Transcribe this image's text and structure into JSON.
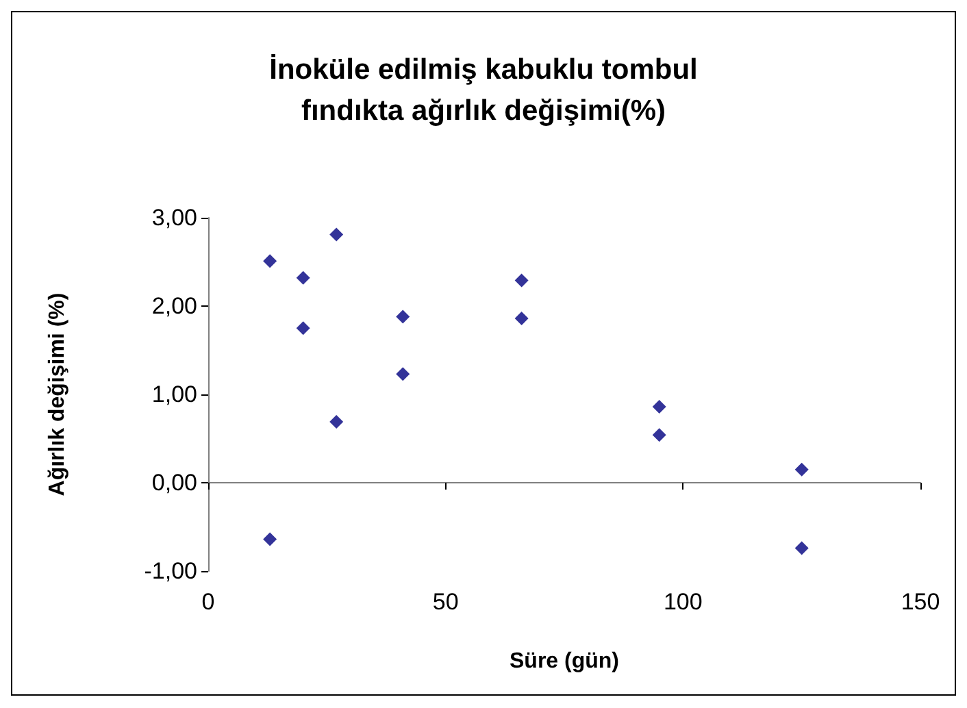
{
  "chart_data": {
    "type": "scatter",
    "title": "İnoküle edilmiş kabuklu tombul\nfındıkta ağırlık değişimi(%)",
    "xlabel": "Süre (gün)",
    "ylabel": "Ağırlık değişimi (%)",
    "x": [
      13,
      13,
      20,
      20,
      27,
      27,
      41,
      41,
      66,
      66,
      95,
      95,
      125,
      125
    ],
    "series": [
      {
        "color": "#000080",
        "values": [
          2.51,
          -0.64,
          2.32,
          1.75,
          2.81,
          0.69,
          1.88,
          1.23,
          2.29,
          1.86,
          0.86,
          0.54,
          0.15,
          -0.74
        ]
      }
    ],
    "xlim": [
      0,
      150
    ],
    "xticks": [
      0,
      50,
      100,
      150
    ],
    "ylim": [
      -1,
      3
    ],
    "yticks": [
      {
        "value": -1,
        "label": "-1,00"
      },
      {
        "value": 0,
        "label": "0,00"
      },
      {
        "value": 1,
        "label": "1,00"
      },
      {
        "value": 2,
        "label": "2,00"
      },
      {
        "value": 3,
        "label": "3,00"
      }
    ],
    "marker": "diamond"
  }
}
